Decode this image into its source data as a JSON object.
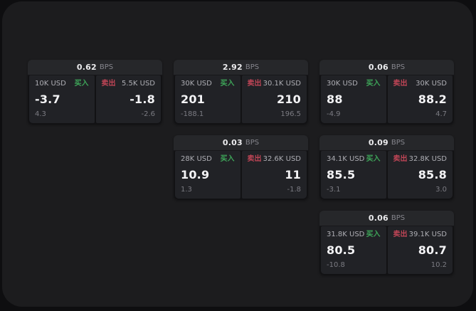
{
  "labels": {
    "bps_unit": "BPS",
    "buy": "买入",
    "sell": "卖出"
  },
  "colors": {
    "buy": "#3ea659",
    "sell": "#c04556",
    "panel_bg": "#1c1c1e",
    "card_bg": "#26272a",
    "cell_bg": "#212226",
    "page_bg": "#0e0e10"
  },
  "cards": [
    {
      "row": 1,
      "col": 1,
      "bps": "0.62",
      "buy": {
        "amount": "10K USD",
        "price": "-3.7",
        "delta": "4.3"
      },
      "sell": {
        "amount": "5.5K USD",
        "price": "-1.8",
        "delta": "-2.6"
      }
    },
    {
      "row": 1,
      "col": 2,
      "bps": "2.92",
      "buy": {
        "amount": "30K USD",
        "price": "201",
        "delta": "-188.1"
      },
      "sell": {
        "amount": "30.1K USD",
        "price": "210",
        "delta": "196.5"
      }
    },
    {
      "row": 1,
      "col": 3,
      "bps": "0.06",
      "buy": {
        "amount": "30K USD",
        "price": "88",
        "delta": "-4.9"
      },
      "sell": {
        "amount": "30K USD",
        "price": "88.2",
        "delta": "4.7"
      }
    },
    {
      "row": 2,
      "col": 2,
      "bps": "0.03",
      "buy": {
        "amount": "28K USD",
        "price": "10.9",
        "delta": "1.3"
      },
      "sell": {
        "amount": "32.6K USD",
        "price": "11",
        "delta": "-1.8"
      }
    },
    {
      "row": 2,
      "col": 3,
      "bps": "0.09",
      "buy": {
        "amount": "34.1K USD",
        "price": "85.5",
        "delta": "-3.1"
      },
      "sell": {
        "amount": "32.8K USD",
        "price": "85.8",
        "delta": "3.0"
      }
    },
    {
      "row": 3,
      "col": 3,
      "bps": "0.06",
      "buy": {
        "amount": "31.8K USD",
        "price": "80.5",
        "delta": "-10.8"
      },
      "sell": {
        "amount": "39.1K USD",
        "price": "80.7",
        "delta": "10.2"
      }
    }
  ]
}
